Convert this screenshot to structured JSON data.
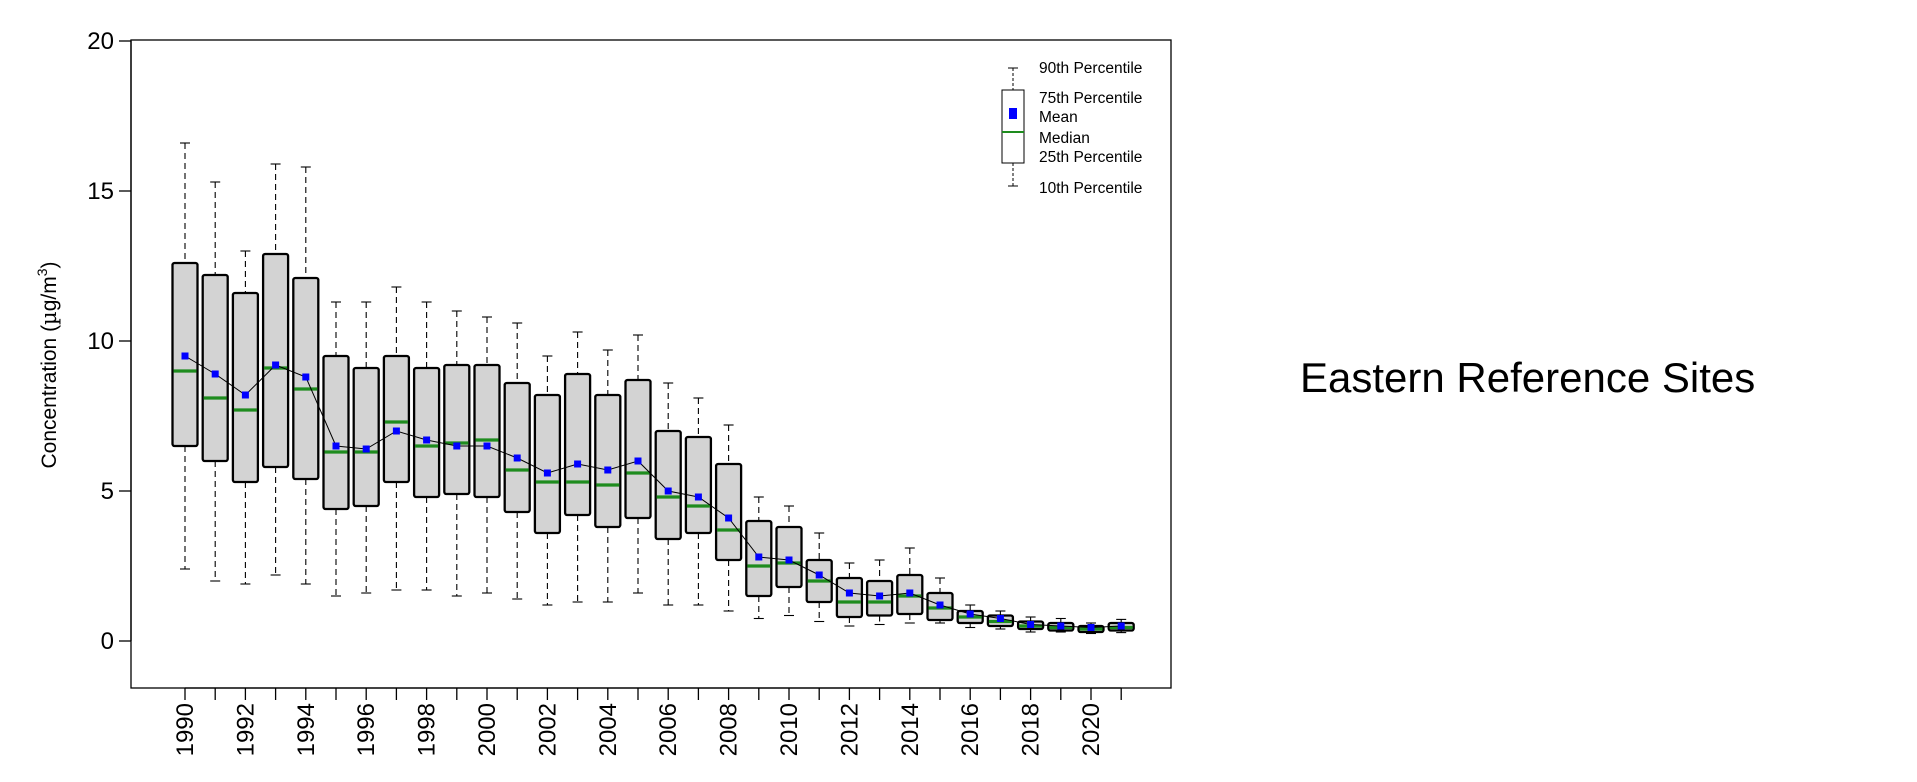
{
  "side_title": "Eastern Reference Sites",
  "colors": {
    "box_fill": "#d3d3d3",
    "box_stroke": "#000000",
    "median": "#1e8c1e",
    "mean": "#0000ff",
    "mean_line": "#000000"
  },
  "chart_data": {
    "type": "box",
    "title": "",
    "xlabel": "",
    "ylabel": "Concentration (µg/m³)",
    "ylabel_parts": {
      "prefix": "Concentration (",
      "mu": "µ",
      "unit": "g/m",
      "superscript": "3",
      "suffix": ")"
    },
    "ylim": [
      -0.8,
      20.8
    ],
    "yticks": [
      0,
      5,
      10,
      15,
      20
    ],
    "xtick_labels": [
      "1990",
      "1992",
      "1994",
      "1996",
      "1998",
      "2000",
      "2002",
      "2004",
      "2006",
      "2008",
      "2010",
      "2012",
      "2014",
      "2016",
      "2018",
      "2020"
    ],
    "legend": {
      "position": "top-right",
      "entries": [
        "90th Percentile",
        "75th Percentile",
        "Mean",
        "Median",
        "25th Percentile",
        "10th Percentile"
      ]
    },
    "series": [
      {
        "year": 1990,
        "p10": 2.4,
        "p25": 6.5,
        "median": 9.0,
        "mean": 9.5,
        "p75": 12.6,
        "p90": 16.6
      },
      {
        "year": 1991,
        "p10": 2.0,
        "p25": 6.0,
        "median": 8.1,
        "mean": 8.9,
        "p75": 12.2,
        "p90": 15.3
      },
      {
        "year": 1992,
        "p10": 1.9,
        "p25": 5.3,
        "median": 7.7,
        "mean": 8.2,
        "p75": 11.6,
        "p90": 13.0
      },
      {
        "year": 1993,
        "p10": 2.2,
        "p25": 5.8,
        "median": 9.1,
        "mean": 9.2,
        "p75": 12.9,
        "p90": 15.9
      },
      {
        "year": 1994,
        "p10": 1.9,
        "p25": 5.4,
        "median": 8.4,
        "mean": 8.8,
        "p75": 12.1,
        "p90": 15.8
      },
      {
        "year": 1995,
        "p10": 1.5,
        "p25": 4.4,
        "median": 6.3,
        "mean": 6.5,
        "p75": 9.5,
        "p90": 11.3
      },
      {
        "year": 1996,
        "p10": 1.6,
        "p25": 4.5,
        "median": 6.3,
        "mean": 6.4,
        "p75": 9.1,
        "p90": 11.3
      },
      {
        "year": 1997,
        "p10": 1.7,
        "p25": 5.3,
        "median": 7.3,
        "mean": 7.0,
        "p75": 9.5,
        "p90": 11.8
      },
      {
        "year": 1998,
        "p10": 1.7,
        "p25": 4.8,
        "median": 6.5,
        "mean": 6.7,
        "p75": 9.1,
        "p90": 11.3
      },
      {
        "year": 1999,
        "p10": 1.5,
        "p25": 4.9,
        "median": 6.6,
        "mean": 6.5,
        "p75": 9.2,
        "p90": 11.0
      },
      {
        "year": 2000,
        "p10": 1.6,
        "p25": 4.8,
        "median": 6.7,
        "mean": 6.5,
        "p75": 9.2,
        "p90": 10.8
      },
      {
        "year": 2001,
        "p10": 1.4,
        "p25": 4.3,
        "median": 5.7,
        "mean": 6.1,
        "p75": 8.6,
        "p90": 10.6
      },
      {
        "year": 2002,
        "p10": 1.2,
        "p25": 3.6,
        "median": 5.3,
        "mean": 5.6,
        "p75": 8.2,
        "p90": 9.5
      },
      {
        "year": 2003,
        "p10": 1.3,
        "p25": 4.2,
        "median": 5.3,
        "mean": 5.9,
        "p75": 8.9,
        "p90": 10.3
      },
      {
        "year": 2004,
        "p10": 1.3,
        "p25": 3.8,
        "median": 5.2,
        "mean": 5.7,
        "p75": 8.2,
        "p90": 9.7
      },
      {
        "year": 2005,
        "p10": 1.6,
        "p25": 4.1,
        "median": 5.6,
        "mean": 6.0,
        "p75": 8.7,
        "p90": 10.2
      },
      {
        "year": 2006,
        "p10": 1.2,
        "p25": 3.4,
        "median": 4.8,
        "mean": 5.0,
        "p75": 7.0,
        "p90": 8.6
      },
      {
        "year": 2007,
        "p10": 1.2,
        "p25": 3.6,
        "median": 4.5,
        "mean": 4.8,
        "p75": 6.8,
        "p90": 8.1
      },
      {
        "year": 2008,
        "p10": 1.0,
        "p25": 2.7,
        "median": 3.7,
        "mean": 4.1,
        "p75": 5.9,
        "p90": 7.2
      },
      {
        "year": 2009,
        "p10": 0.75,
        "p25": 1.5,
        "median": 2.5,
        "mean": 2.8,
        "p75": 4.0,
        "p90": 4.8
      },
      {
        "year": 2010,
        "p10": 0.85,
        "p25": 1.8,
        "median": 2.6,
        "mean": 2.7,
        "p75": 3.8,
        "p90": 4.5
      },
      {
        "year": 2011,
        "p10": 0.65,
        "p25": 1.3,
        "median": 2.0,
        "mean": 2.2,
        "p75": 2.7,
        "p90": 3.6
      },
      {
        "year": 2012,
        "p10": 0.5,
        "p25": 0.8,
        "median": 1.3,
        "mean": 1.6,
        "p75": 2.1,
        "p90": 2.6
      },
      {
        "year": 2013,
        "p10": 0.55,
        "p25": 0.85,
        "median": 1.3,
        "mean": 1.5,
        "p75": 2.0,
        "p90": 2.7
      },
      {
        "year": 2014,
        "p10": 0.6,
        "p25": 0.9,
        "median": 1.5,
        "mean": 1.6,
        "p75": 2.2,
        "p90": 3.1
      },
      {
        "year": 2015,
        "p10": 0.6,
        "p25": 0.7,
        "median": 1.1,
        "mean": 1.2,
        "p75": 1.6,
        "p90": 2.1
      },
      {
        "year": 2016,
        "p10": 0.45,
        "p25": 0.6,
        "median": 0.8,
        "mean": 0.9,
        "p75": 1.0,
        "p90": 1.2
      },
      {
        "year": 2017,
        "p10": 0.4,
        "p25": 0.5,
        "median": 0.65,
        "mean": 0.75,
        "p75": 0.85,
        "p90": 1.0
      },
      {
        "year": 2018,
        "p10": 0.3,
        "p25": 0.4,
        "median": 0.5,
        "mean": 0.55,
        "p75": 0.65,
        "p90": 0.8
      },
      {
        "year": 2019,
        "p10": 0.3,
        "p25": 0.35,
        "median": 0.45,
        "mean": 0.5,
        "p75": 0.6,
        "p90": 0.75
      },
      {
        "year": 2020,
        "p10": 0.25,
        "p25": 0.3,
        "median": 0.4,
        "mean": 0.45,
        "p75": 0.5,
        "p90": 0.6
      },
      {
        "year": 2021,
        "p10": 0.28,
        "p25": 0.35,
        "median": 0.45,
        "mean": 0.5,
        "p75": 0.6,
        "p90": 0.72
      }
    ]
  }
}
